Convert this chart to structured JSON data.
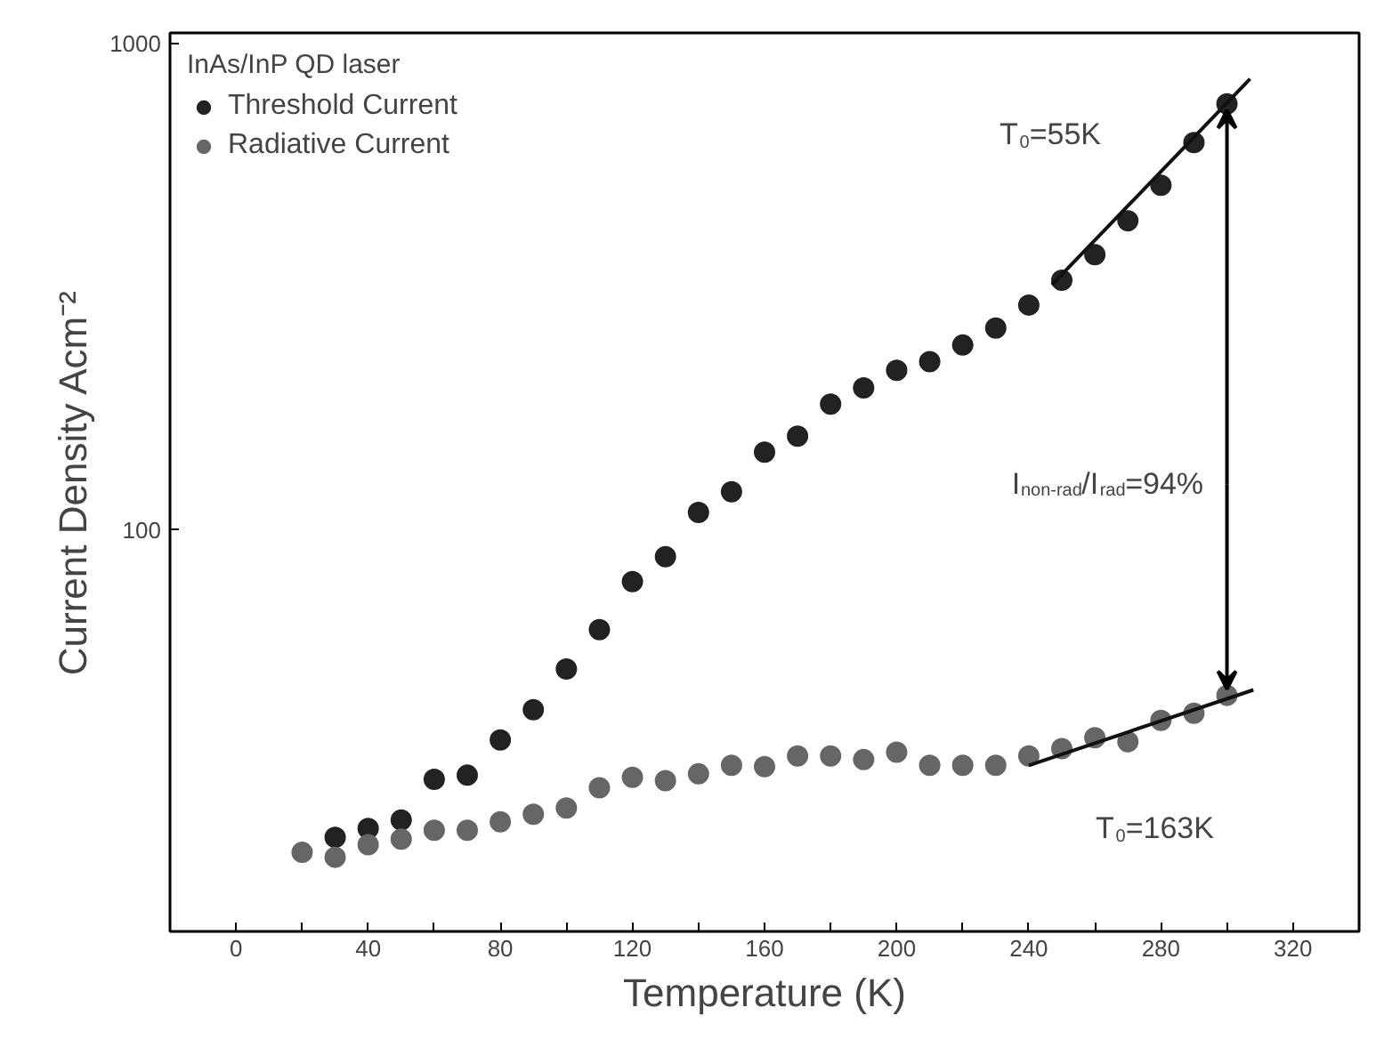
{
  "chart_data": {
    "type": "scatter",
    "xlabel": "Temperature (K)",
    "ylabel": "Current Density Acm⁻²",
    "legend_title": "InAs/InP QD laser",
    "log": "y",
    "xlim": [
      -20,
      340
    ],
    "ylim": [
      15,
      1050
    ],
    "xticks": [
      {
        "value": -20,
        "label": null
      },
      0,
      {
        "value": 20,
        "label": null
      },
      40,
      {
        "value": 60,
        "label": null
      },
      80,
      {
        "value": 100,
        "label": null
      },
      120,
      {
        "value": 140,
        "label": null
      },
      160,
      {
        "value": 180,
        "label": null
      },
      200,
      {
        "value": 220,
        "label": null
      },
      240,
      {
        "value": 260,
        "label": null
      },
      280,
      {
        "value": 300,
        "label": null
      },
      320
    ],
    "yticks": [
      100,
      1000
    ],
    "legend": "top left",
    "marker": "circle",
    "grid": false,
    "series": [
      {
        "name": "Threshold Current",
        "color": "#222222",
        "x": [
          30,
          40,
          50,
          60,
          70,
          80,
          90,
          100,
          110,
          120,
          130,
          140,
          150,
          160,
          170,
          180,
          190,
          200,
          210,
          220,
          230,
          240,
          250,
          260,
          270,
          280,
          290,
          300
        ],
        "values": [
          23.4,
          24.4,
          25.4,
          30.8,
          31.4,
          37.1,
          42.8,
          51.9,
          62.5,
          78.4,
          88.2,
          108.8,
          120,
          144.7,
          156,
          181.6,
          196,
          213,
          222,
          240,
          260,
          290,
          326,
          368,
          432,
          511,
          625,
          751
        ]
      },
      {
        "name": "Radiative Current",
        "color": "#666666",
        "x": [
          20,
          30,
          40,
          50,
          60,
          70,
          80,
          90,
          100,
          110,
          120,
          130,
          140,
          150,
          160,
          170,
          180,
          190,
          200,
          210,
          220,
          230,
          240,
          250,
          260,
          270,
          280,
          290,
          300
        ],
        "values": [
          21.8,
          21.3,
          22.6,
          23.2,
          24.2,
          24.2,
          25.2,
          26.1,
          26.9,
          29.6,
          31.1,
          30.6,
          31.6,
          32.9,
          32.7,
          34.4,
          34.4,
          33.8,
          35.0,
          32.9,
          32.9,
          32.9,
          34.4,
          35.6,
          37.5,
          36.8,
          40.7,
          42.1,
          45.8
        ]
      },
      {
        "type": "line",
        "marker": "none",
        "color": "#111111",
        "x": [
          247,
          307
        ],
        "values": [
          319,
          845
        ]
      },
      {
        "type": "line",
        "marker": "none",
        "color": "#111111",
        "x": [
          240,
          308
        ],
        "values": [
          32.9,
          47
        ]
      }
    ],
    "annotations": [
      "T$_{0}$=55K",
      "T$_{0}$=163K",
      {
        "text": "I$_{non-rad}$/I$_{rad}$=94%",
        "x": 300,
        "y": 751
      }
    ]
  }
}
